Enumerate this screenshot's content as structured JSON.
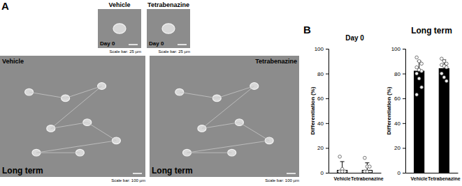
{
  "panel_a": {
    "label": "A",
    "images": [
      {
        "header": "Vehicle",
        "caption": "Day 0",
        "scale_bar": "Scale bar: 25 µm"
      },
      {
        "header": "Tetrabenazine",
        "caption": "Day 0",
        "scale_bar": "Scale bar: 25 µm"
      },
      {
        "header": "Vehicle",
        "caption": "Long term",
        "scale_bar": "Scale bar: 100 µm"
      },
      {
        "header": "Tetrabenazine",
        "caption": "Long term",
        "scale_bar": "Scale bar: 100 µm"
      }
    ]
  },
  "panel_b": {
    "label": "B"
  },
  "chart_data": [
    {
      "type": "bar",
      "title": "Day 0",
      "y_label": "Differentiation (%)",
      "categories": [
        "Vehicle",
        "Tetrabenazine"
      ],
      "values": [
        2,
        2
      ],
      "errors": [
        7,
        6
      ],
      "points": [
        [
          13,
          3,
          1,
          1,
          1
        ],
        [
          12,
          5,
          5,
          1,
          1
        ]
      ],
      "color": "#ffffff",
      "ylim": [
        0,
        100
      ],
      "yticks": [
        0,
        20,
        40,
        60,
        80,
        100
      ]
    },
    {
      "type": "bar",
      "title": "Long term",
      "y_label": "Differentiation (%)",
      "categories": [
        "Vehicle",
        "Tetrabenazine"
      ],
      "values": [
        82,
        84
      ],
      "errors": [
        8,
        7
      ],
      "points": [
        [
          93,
          90,
          88,
          85,
          83,
          82,
          80,
          76,
          69,
          63
        ],
        [
          92,
          90,
          88,
          87,
          86,
          85,
          80,
          77,
          74
        ]
      ],
      "color": "#000000",
      "ylim": [
        0,
        100
      ],
      "yticks": [
        0,
        20,
        40,
        60,
        80,
        100
      ]
    }
  ]
}
